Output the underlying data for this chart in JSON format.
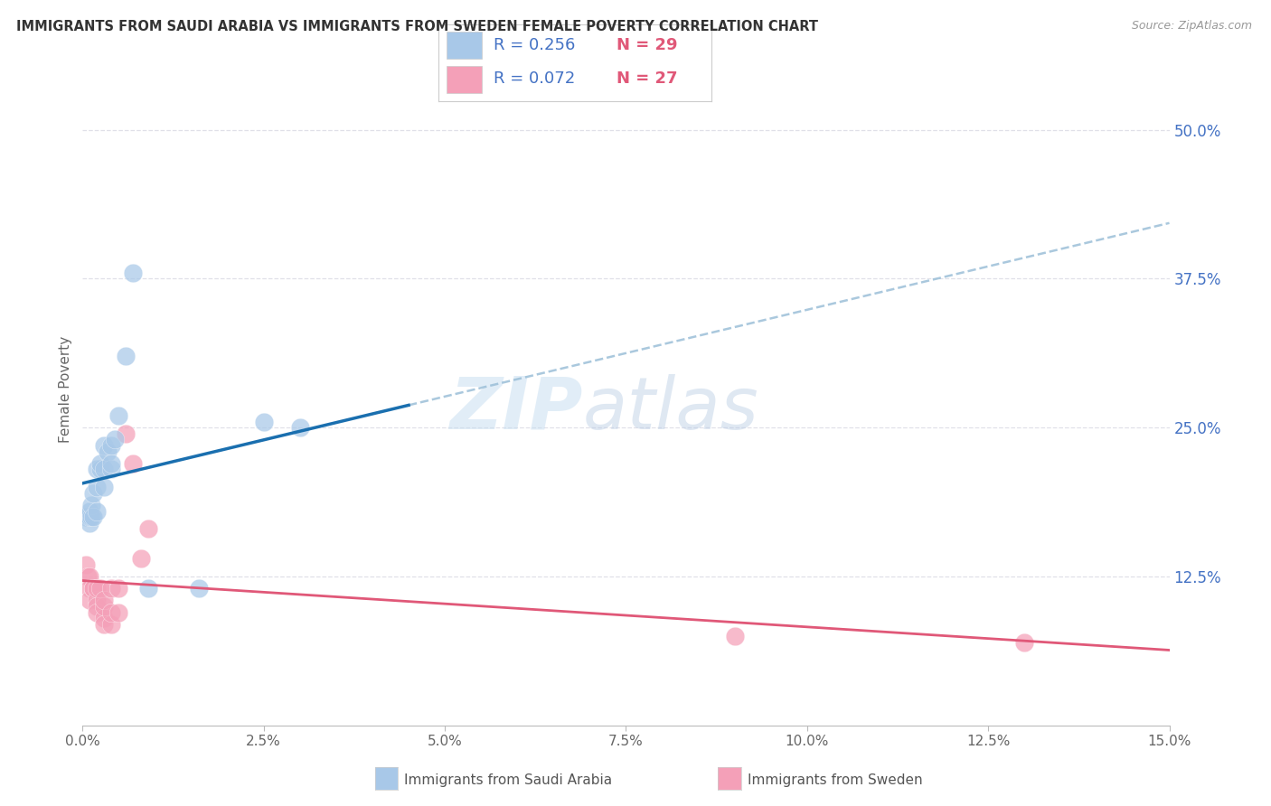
{
  "title": "IMMIGRANTS FROM SAUDI ARABIA VS IMMIGRANTS FROM SWEDEN FEMALE POVERTY CORRELATION CHART",
  "source": "Source: ZipAtlas.com",
  "ylabel": "Female Poverty",
  "ytick_labels": [
    "12.5%",
    "25.0%",
    "37.5%",
    "50.0%"
  ],
  "ytick_values": [
    0.125,
    0.25,
    0.375,
    0.5
  ],
  "xlim": [
    0.0,
    0.15
  ],
  "ylim": [
    0.0,
    0.565
  ],
  "legend1_R": "0.256",
  "legend1_N": "29",
  "legend2_R": "0.072",
  "legend2_N": "27",
  "color_blue": "#a8c8e8",
  "color_pink": "#f4a0b8",
  "color_blue_line": "#1a6faf",
  "color_pink_line": "#e05878",
  "color_dashed": "#9bbfd8",
  "saudi_x": [
    0.0005,
    0.0007,
    0.001,
    0.001,
    0.001,
    0.0012,
    0.0012,
    0.0015,
    0.0015,
    0.002,
    0.002,
    0.002,
    0.0025,
    0.0025,
    0.003,
    0.003,
    0.003,
    0.0035,
    0.004,
    0.004,
    0.004,
    0.0045,
    0.005,
    0.006,
    0.007,
    0.009,
    0.016,
    0.025,
    0.03
  ],
  "saudi_y": [
    0.175,
    0.175,
    0.17,
    0.175,
    0.18,
    0.175,
    0.185,
    0.175,
    0.195,
    0.18,
    0.2,
    0.215,
    0.215,
    0.22,
    0.2,
    0.215,
    0.235,
    0.23,
    0.215,
    0.22,
    0.235,
    0.24,
    0.26,
    0.31,
    0.38,
    0.115,
    0.115,
    0.255,
    0.25
  ],
  "sweden_x": [
    0.0005,
    0.0007,
    0.001,
    0.001,
    0.001,
    0.0015,
    0.0015,
    0.002,
    0.002,
    0.002,
    0.002,
    0.0025,
    0.003,
    0.003,
    0.003,
    0.003,
    0.004,
    0.004,
    0.004,
    0.005,
    0.005,
    0.006,
    0.007,
    0.008,
    0.009,
    0.09,
    0.13
  ],
  "sweden_y": [
    0.135,
    0.125,
    0.125,
    0.115,
    0.105,
    0.115,
    0.115,
    0.105,
    0.1,
    0.095,
    0.115,
    0.115,
    0.09,
    0.1,
    0.105,
    0.085,
    0.085,
    0.095,
    0.115,
    0.095,
    0.115,
    0.245,
    0.22,
    0.14,
    0.165,
    0.075,
    0.07
  ],
  "watermark_zip": "ZIP",
  "watermark_atlas": "atlas",
  "background_color": "#ffffff",
  "grid_color": "#e0e0e8",
  "xtick_positions": [
    0.0,
    0.025,
    0.05,
    0.075,
    0.1,
    0.125,
    0.15
  ],
  "xtick_labels": [
    "0.0%",
    "2.5%",
    "5.0%",
    "7.5%",
    "10.0%",
    "12.5%",
    "15.0%"
  ],
  "solid_line_xmax": 0.045,
  "dashed_line_xmin": 0.045
}
